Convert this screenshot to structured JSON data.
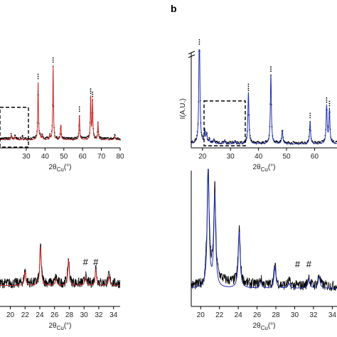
{
  "panel_label": "b",
  "axis_symbol_main": "2θ",
  "axis_subscript": "Cu",
  "axis_unit": "(°)",
  "colors": {
    "fit_left": "#cc2a2a",
    "fit_right": "#2433b8",
    "data": "#000000"
  },
  "chart_data": [
    {
      "type": "line",
      "panel": "top-left",
      "xlabel": "2θCu(°)",
      "ylabel": "",
      "xlim": [
        16,
        80
      ],
      "ylim": [
        0,
        100
      ],
      "x_ticks": [
        30,
        40,
        50,
        60,
        70,
        80
      ],
      "peaks": [
        {
          "x": 22,
          "y": 6
        },
        {
          "x": 24,
          "y": 4
        },
        {
          "x": 28,
          "y": 3
        },
        {
          "x": 36.3,
          "y": 70
        },
        {
          "x": 37.4,
          "y": 4
        },
        {
          "x": 38.5,
          "y": 5
        },
        {
          "x": 42.5,
          "y": 5
        },
        {
          "x": 44.3,
          "y": 90
        },
        {
          "x": 48.4,
          "y": 18
        },
        {
          "x": 58.3,
          "y": 30
        },
        {
          "x": 64.3,
          "y": 52
        },
        {
          "x": 65.3,
          "y": 48
        },
        {
          "x": 68.2,
          "y": 21
        },
        {
          "x": 77.1,
          "y": 5
        }
      ],
      "series": [
        {
          "name": "",
          "color": "#cc2a2a",
          "style": "line"
        },
        {
          "name": "",
          "color": "#000000",
          "style": "points"
        }
      ],
      "annotations": [
        "dashed-zoom-box"
      ]
    },
    {
      "type": "line",
      "panel": "top-right",
      "label": "b",
      "xlabel": "2θCu(°)",
      "ylabel": "I(A.U.)",
      "xlim": [
        16,
        68
      ],
      "ylim": [
        0,
        100
      ],
      "x_ticks": [
        20,
        30,
        40,
        50,
        60
      ],
      "axis_break": true,
      "peaks": [
        {
          "x": 18.9,
          "y": 140
        },
        {
          "x": 20.8,
          "y": 15
        },
        {
          "x": 21.5,
          "y": 11
        },
        {
          "x": 22.5,
          "y": 4
        },
        {
          "x": 24.1,
          "y": 5
        },
        {
          "x": 27.9,
          "y": 4
        },
        {
          "x": 31.6,
          "y": 3
        },
        {
          "x": 36.4,
          "y": 60
        },
        {
          "x": 44.4,
          "y": 80
        },
        {
          "x": 48.5,
          "y": 16
        },
        {
          "x": 58.4,
          "y": 26
        },
        {
          "x": 64.3,
          "y": 44
        },
        {
          "x": 65.3,
          "y": 40
        }
      ],
      "series": [
        {
          "name": "",
          "color": "#2433b8",
          "style": "line"
        },
        {
          "name": "",
          "color": "#000000",
          "style": "points"
        }
      ],
      "annotations": [
        "dashed-zoom-box"
      ]
    },
    {
      "type": "line",
      "panel": "bottom-left",
      "xlabel": "2θCu(°)",
      "ylabel": "",
      "xlim": [
        18.6,
        34.9
      ],
      "ylim": [
        0,
        100
      ],
      "x_ticks": [
        20,
        22,
        24,
        26,
        28,
        30,
        32,
        34
      ],
      "peaks": [
        {
          "x": 22,
          "y": 12
        },
        {
          "x": 24.1,
          "y": 34
        },
        {
          "x": 26.2,
          "y": 6
        },
        {
          "x": 27.9,
          "y": 22
        },
        {
          "x": 30.2,
          "y": 7
        },
        {
          "x": 31.6,
          "y": 14
        },
        {
          "x": 33.4,
          "y": 8
        }
      ],
      "markers": [
        {
          "x": 30.2,
          "label": "#"
        },
        {
          "x": 31.6,
          "label": "#"
        }
      ],
      "series": [
        {
          "name": "",
          "color": "#cc2a2a",
          "style": "line"
        },
        {
          "name": "",
          "color": "#000000",
          "style": "line"
        }
      ]
    },
    {
      "type": "line",
      "panel": "bottom-right",
      "xlabel": "2θCu(°)",
      "ylabel": "",
      "xlim": [
        19,
        34.5
      ],
      "ylim": [
        0,
        100
      ],
      "x_ticks": [
        20,
        22,
        24,
        26,
        28,
        30,
        32,
        34
      ],
      "peaks": [
        {
          "x": 20.8,
          "y": 100
        },
        {
          "x": 21.5,
          "y": 78
        },
        {
          "x": 24.1,
          "y": 48
        },
        {
          "x": 26.4,
          "y": 5
        },
        {
          "x": 27.9,
          "y": 18
        },
        {
          "x": 29.4,
          "y": 4
        },
        {
          "x": 31.5,
          "y": 8
        },
        {
          "x": 32.6,
          "y": 10
        }
      ],
      "markers": [
        {
          "x": 30.3,
          "label": "#"
        },
        {
          "x": 31.5,
          "label": "#"
        }
      ],
      "series": [
        {
          "name": "",
          "color": "#2433b8",
          "style": "line"
        },
        {
          "name": "",
          "color": "#000000",
          "style": "line"
        }
      ]
    }
  ]
}
